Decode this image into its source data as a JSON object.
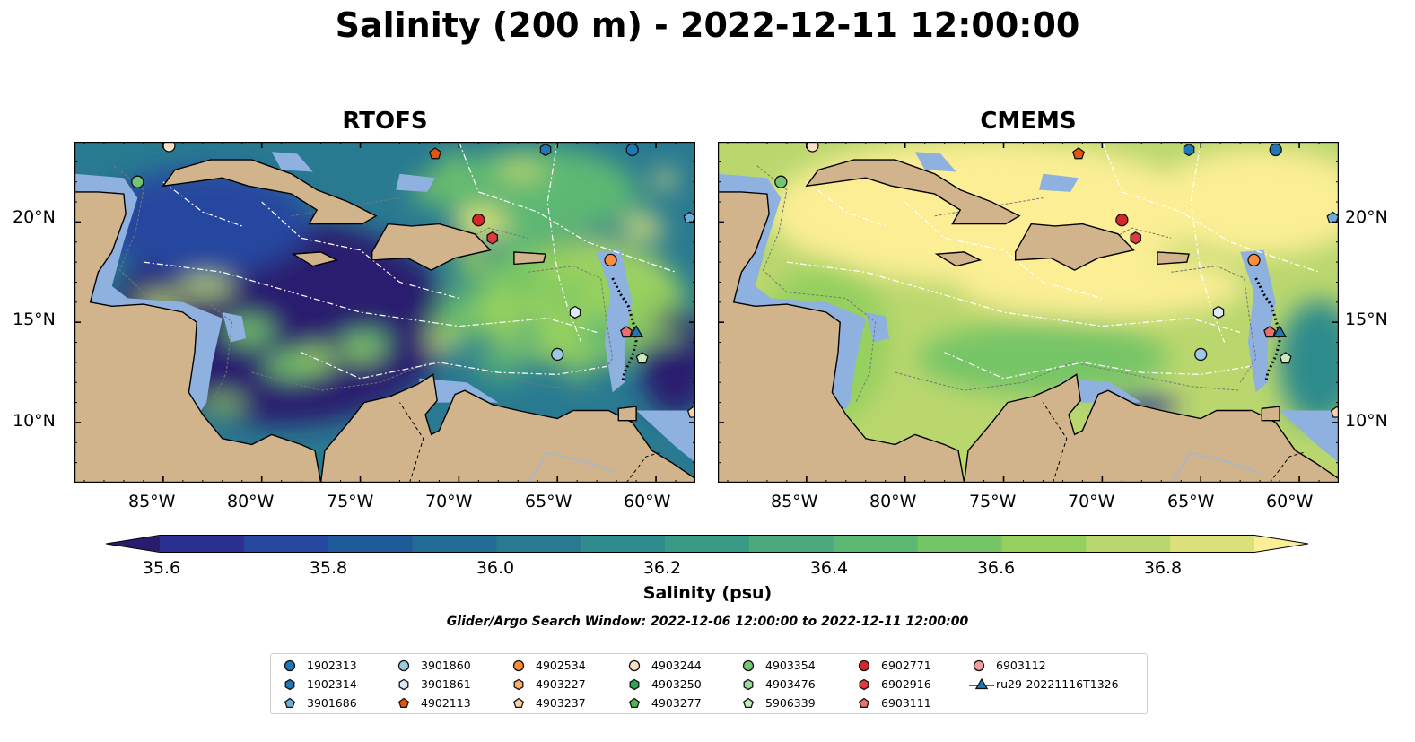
{
  "title": "Salinity (200 m) - 2022-12-11 12:00:00",
  "panels": [
    {
      "title": "RTOFS",
      "scheme": "rtofs"
    },
    {
      "title": "CMEMS",
      "scheme": "cmems"
    }
  ],
  "map": {
    "lon_range": [
      -89.5,
      -58.0
    ],
    "lat_range": [
      7.0,
      24.0
    ],
    "lon_ticks": [
      "85°W",
      "80°W",
      "75°W",
      "70°W",
      "65°W",
      "60°W"
    ],
    "lat_ticks": [
      "20°N",
      "15°N",
      "10°N"
    ],
    "colors": {
      "land": "#d2b48c",
      "shelf": "#8eb1e0",
      "contour": "#777777",
      "eez": "#ffffff"
    }
  },
  "colorbar": {
    "label": "Salinity (psu)",
    "ticks": [
      "35.6",
      "35.8",
      "36.0",
      "36.2",
      "36.4",
      "36.6",
      "36.8"
    ],
    "colors": [
      "#2a1b6e",
      "#2b2f92",
      "#26479f",
      "#1f5b99",
      "#236c96",
      "#297a91",
      "#2f8b8c",
      "#3a9a86",
      "#4aa97d",
      "#5db873",
      "#76c566",
      "#95d05e",
      "#bad76e",
      "#dbe07a",
      "#fbee95"
    ]
  },
  "search_window": "Glider/Argo Search Window: 2022-12-06 12:00:00 to 2022-12-11 12:00:00",
  "legend": [
    {
      "label": "1902313",
      "marker": "circle",
      "color": "#1f77b4"
    },
    {
      "label": "1902314",
      "marker": "hexagon",
      "color": "#1f77b4"
    },
    {
      "label": "3901686",
      "marker": "pentagon",
      "color": "#6baed6"
    },
    {
      "label": "3901860",
      "marker": "circle",
      "color": "#9ecae1"
    },
    {
      "label": "3901861",
      "marker": "hexagon",
      "color": "#deebf7"
    },
    {
      "label": "4902113",
      "marker": "pentagon",
      "color": "#e6550d"
    },
    {
      "label": "4902534",
      "marker": "circle",
      "color": "#fd8d3c"
    },
    {
      "label": "4903227",
      "marker": "hexagon",
      "color": "#fdae6b"
    },
    {
      "label": "4903237",
      "marker": "pentagon",
      "color": "#fdd0a2"
    },
    {
      "label": "4903244",
      "marker": "circle",
      "color": "#fde0c5"
    },
    {
      "label": "4903250",
      "marker": "hexagon",
      "color": "#31a354"
    },
    {
      "label": "4903277",
      "marker": "pentagon",
      "color": "#4fb84f"
    },
    {
      "label": "4903354",
      "marker": "circle",
      "color": "#74c476"
    },
    {
      "label": "4903476",
      "marker": "hexagon",
      "color": "#a1d99b"
    },
    {
      "label": "5906339",
      "marker": "pentagon",
      "color": "#c7e9c0"
    },
    {
      "label": "6902771",
      "marker": "circle",
      "color": "#d62728"
    },
    {
      "label": "6902916",
      "marker": "hexagon",
      "color": "#e0393e"
    },
    {
      "label": "6903111",
      "marker": "pentagon",
      "color": "#ec6f6f"
    },
    {
      "label": "6903112",
      "marker": "circle",
      "color": "#f2a09a"
    },
    {
      "label": "ru29-20221116T1326",
      "marker": "triangle-line",
      "color": "#1f77b4"
    }
  ],
  "floats": [
    {
      "id": "4903354",
      "lon": -86.3,
      "lat": 22.0
    },
    {
      "id": "4903244",
      "lon": -84.7,
      "lat": 23.8
    },
    {
      "id": "4902113",
      "lon": -71.2,
      "lat": 23.4
    },
    {
      "id": "1902314",
      "lon": -65.6,
      "lat": 23.6
    },
    {
      "id": "1902313",
      "lon": -61.2,
      "lat": 23.6
    },
    {
      "id": "3901686",
      "lon": -58.3,
      "lat": 20.2
    },
    {
      "id": "6902771",
      "lon": -69.0,
      "lat": 20.1
    },
    {
      "id": "6902916",
      "lon": -68.3,
      "lat": 19.2
    },
    {
      "id": "4902534",
      "lon": -62.3,
      "lat": 18.1
    },
    {
      "id": "3901861",
      "lon": -64.1,
      "lat": 15.5
    },
    {
      "id": "3901860",
      "lon": -65.0,
      "lat": 13.4
    },
    {
      "id": "6903111",
      "lon": -61.5,
      "lat": 14.5
    },
    {
      "id": "ru29-20221116T1326",
      "lon": -61.0,
      "lat": 14.5
    },
    {
      "id": "5906339",
      "lon": -60.7,
      "lat": 13.2
    },
    {
      "id": "4903237",
      "lon": -58.1,
      "lat": 10.5
    }
  ]
}
